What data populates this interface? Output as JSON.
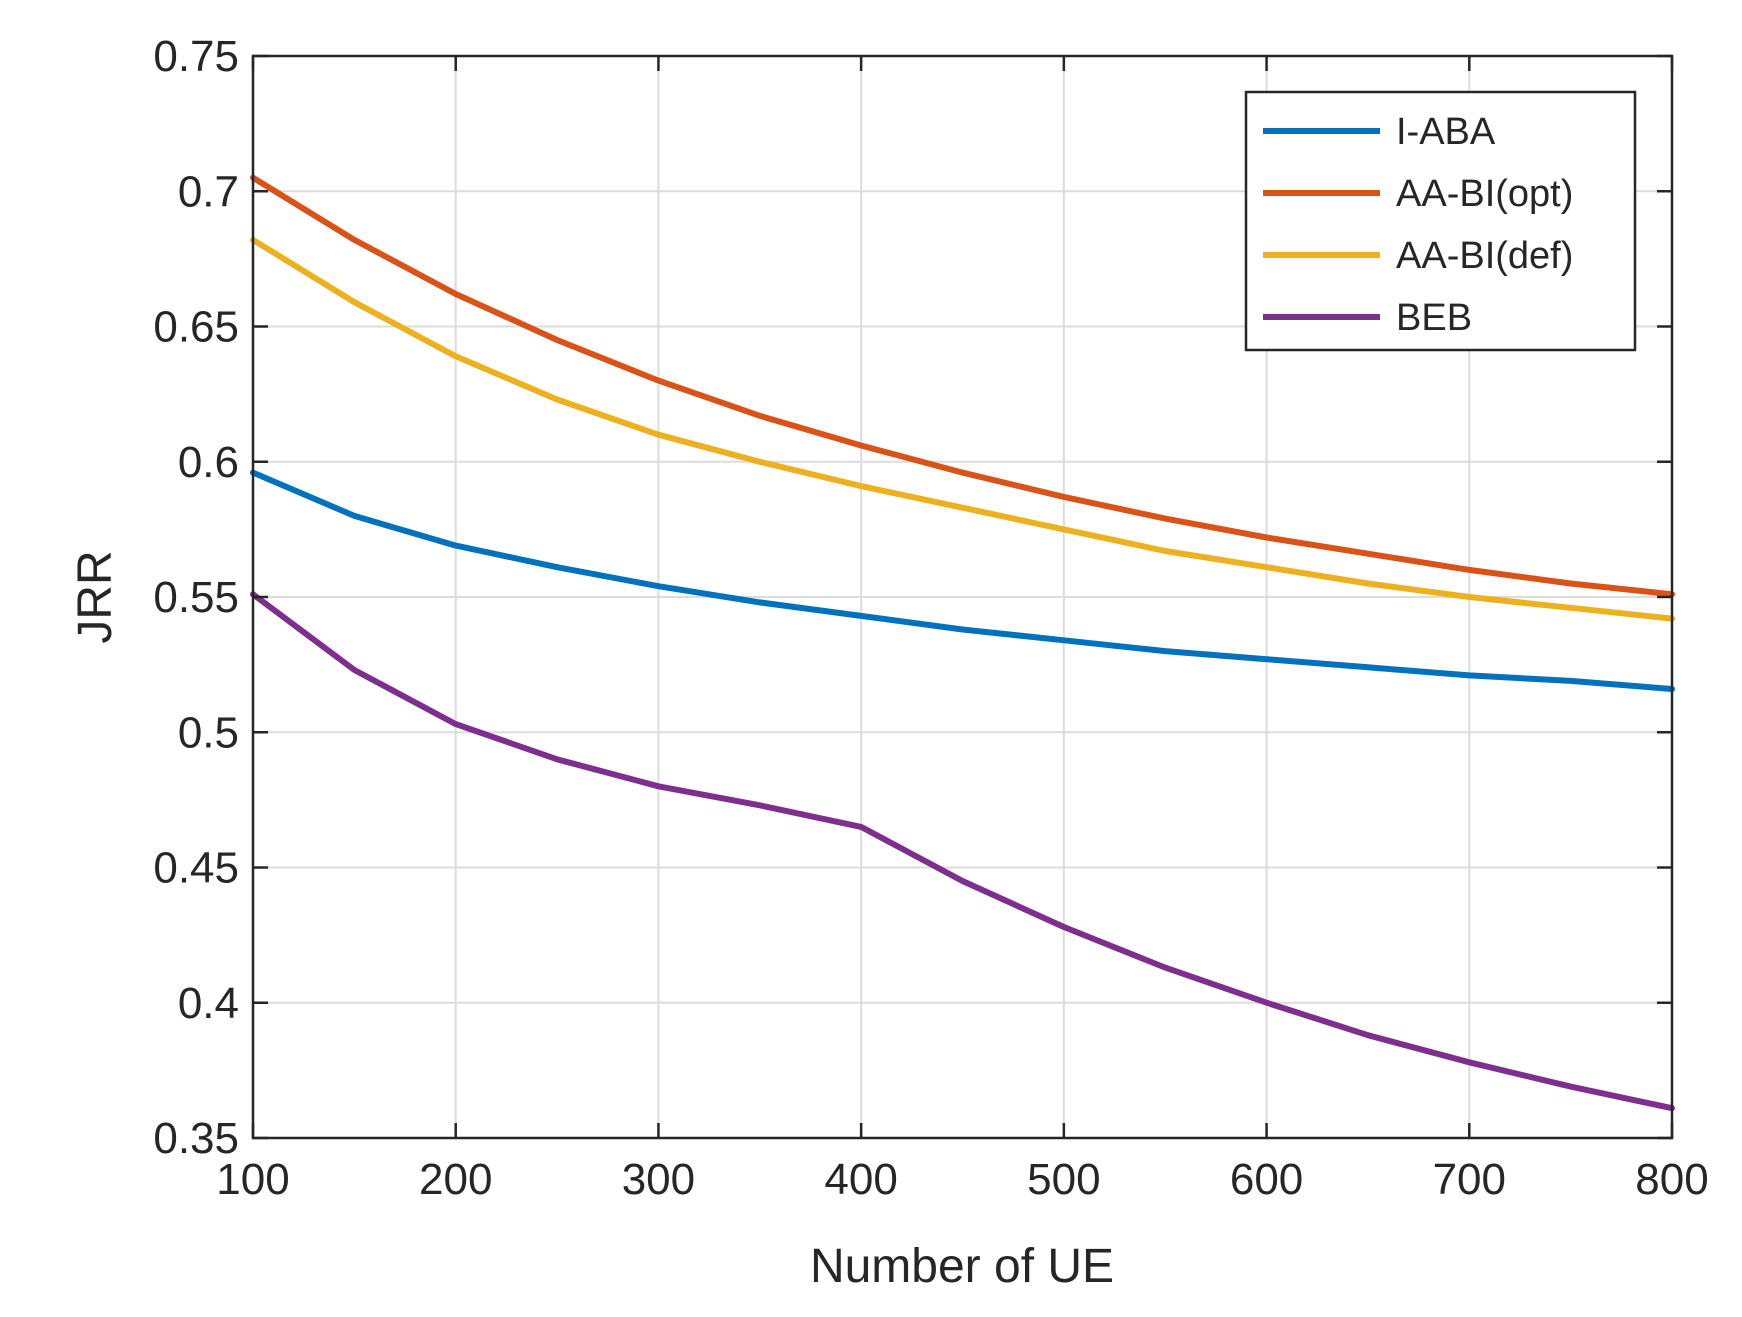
{
  "chart_data": {
    "type": "line",
    "title": "",
    "xlabel": "Number of UE",
    "ylabel": "JRR",
    "xlim": [
      100,
      800
    ],
    "ylim": [
      0.35,
      0.75
    ],
    "grid": true,
    "legend_position": "top-right",
    "x_ticks": [
      "100",
      "200",
      "300",
      "400",
      "500",
      "600",
      "700",
      "800"
    ],
    "y_ticks": [
      "0.35",
      "0.4",
      "0.45",
      "0.5",
      "0.55",
      "0.6",
      "0.65",
      "0.7",
      "0.75"
    ],
    "x": [
      100,
      150,
      200,
      250,
      300,
      350,
      400,
      450,
      500,
      550,
      600,
      650,
      700,
      750,
      800
    ],
    "series": [
      {
        "name": "I-ABA",
        "color": "#0072BD",
        "values": [
          0.596,
          0.58,
          0.569,
          0.561,
          0.554,
          0.548,
          0.543,
          0.538,
          0.534,
          0.53,
          0.527,
          0.524,
          0.521,
          0.519,
          0.516
        ]
      },
      {
        "name": "AA-BI(opt)",
        "color": "#D95319",
        "values": [
          0.705,
          0.682,
          0.662,
          0.645,
          0.63,
          0.617,
          0.606,
          0.596,
          0.587,
          0.579,
          0.572,
          0.566,
          0.56,
          0.555,
          0.551
        ]
      },
      {
        "name": "AA-BI(def)",
        "color": "#EDB120",
        "values": [
          0.682,
          0.659,
          0.639,
          0.623,
          0.61,
          0.6,
          0.591,
          0.583,
          0.575,
          0.567,
          0.561,
          0.555,
          0.55,
          0.546,
          0.542
        ]
      },
      {
        "name": "BEB",
        "color": "#7E2F8E",
        "values": [
          0.551,
          0.523,
          0.503,
          0.49,
          0.48,
          0.473,
          0.465,
          0.445,
          0.428,
          0.413,
          0.4,
          0.388,
          0.378,
          0.369,
          0.361
        ]
      }
    ]
  }
}
